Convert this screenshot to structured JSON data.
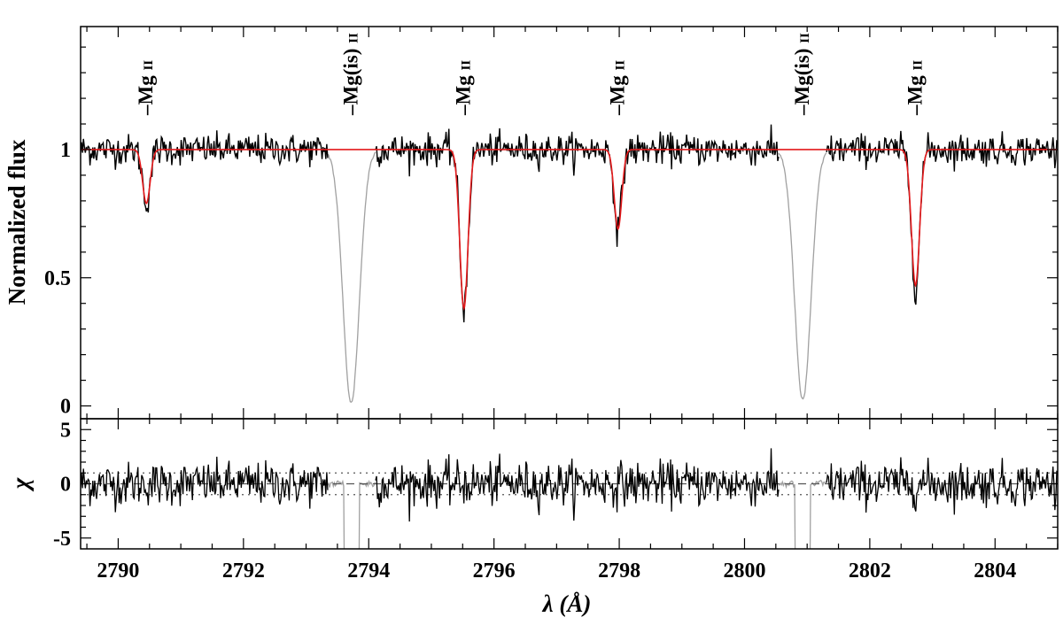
{
  "chart_data": {
    "type": "line",
    "xlabel": "λ (Å)",
    "xlim": [
      2789.4,
      2805.0
    ],
    "x_ticks": [
      2790,
      2792,
      2794,
      2796,
      2798,
      2800,
      2802,
      2804
    ],
    "top_panel": {
      "ylabel": "Normalized flux",
      "ylim": [
        -0.05,
        1.48
      ],
      "y_ticks": [
        {
          "value": 0,
          "label": "0"
        },
        {
          "value": 0.5,
          "label": "0.5"
        },
        {
          "value": 1,
          "label": "1"
        }
      ],
      "continuum": 1.0,
      "noise_sigma": 0.03,
      "series": [
        {
          "role": "observed",
          "color": "#000000"
        },
        {
          "role": "model",
          "color": "#e41a1c"
        },
        {
          "role": "masked",
          "color": "#a0a0a0"
        }
      ],
      "absorption_lines": [
        {
          "label_main": "Mg",
          "label_sub": "II",
          "center": 2790.45,
          "depth": 0.21,
          "sigma": 0.06,
          "masked": false
        },
        {
          "label_main": "Mg(is)",
          "label_sub": "II",
          "center": 2793.72,
          "depth": 0.99,
          "sigma": 0.13,
          "masked": true
        },
        {
          "label_main": "Mg",
          "label_sub": "II",
          "center": 2795.52,
          "depth": 0.62,
          "sigma": 0.065,
          "masked": false
        },
        {
          "label_main": "Mg",
          "label_sub": "II",
          "center": 2797.98,
          "depth": 0.31,
          "sigma": 0.06,
          "masked": false
        },
        {
          "label_main": "Mg(is)",
          "label_sub": "II",
          "center": 2800.93,
          "depth": 0.98,
          "sigma": 0.13,
          "masked": true
        },
        {
          "label_main": "Mg",
          "label_sub": "II",
          "center": 2802.73,
          "depth": 0.53,
          "sigma": 0.065,
          "masked": false
        }
      ],
      "masked_regions": [
        [
          2793.35,
          2794.1
        ],
        [
          2800.55,
          2801.3
        ]
      ]
    },
    "bottom_panel": {
      "ylabel": "χ",
      "ylim": [
        -6.0,
        6.0
      ],
      "y_ticks": [
        {
          "value": 5,
          "label": "5"
        },
        {
          "value": 0,
          "label": "0"
        },
        {
          "value": -5,
          "label": "-5"
        }
      ],
      "reference_lines": [
        {
          "value": 1,
          "style": "dotted"
        },
        {
          "value": 0,
          "style": "dashed"
        },
        {
          "value": -1,
          "style": "dotted"
        }
      ],
      "residual_range": [
        -3.7,
        3.7
      ]
    }
  }
}
